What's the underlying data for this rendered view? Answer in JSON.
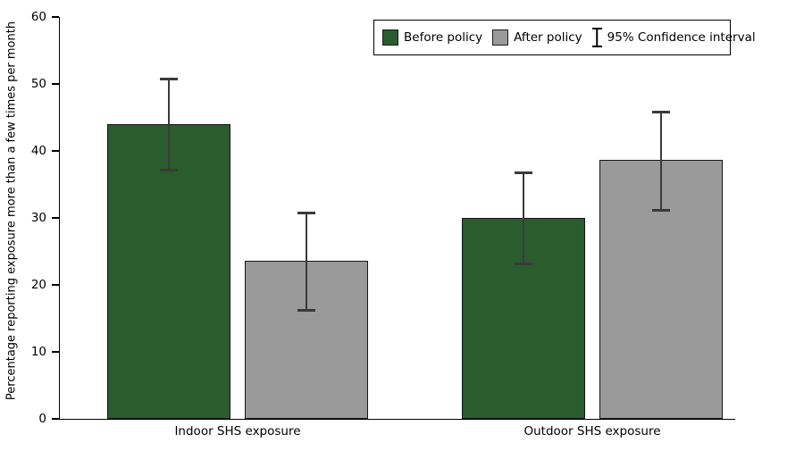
{
  "colors": {
    "before_policy": "#2a5c2d",
    "after_policy": "#9a9a9a",
    "axis": "#000000",
    "error_bar": "#3a3a3a",
    "background": "#ffffff"
  },
  "legend": {
    "ci_label": "95% Confidence interval"
  },
  "chart_data": {
    "type": "bar",
    "title": "",
    "xlabel": "",
    "ylabel": "Percentage reporting exposure more than a few times per month",
    "ylim": [
      0,
      60
    ],
    "yticks": [
      0,
      10,
      20,
      30,
      40,
      50,
      60
    ],
    "grid": false,
    "legend_position": "top-right",
    "categories": [
      "Indoor SHS exposure",
      "Outdoor SHS exposure"
    ],
    "series": [
      {
        "name": "Before policy",
        "color": "#2a5c2d",
        "values": [
          44,
          30
        ],
        "ci_low": [
          37,
          23
        ],
        "ci_high": [
          51,
          37
        ]
      },
      {
        "name": "After policy",
        "color": "#9a9a9a",
        "values": [
          23.6,
          38.7
        ],
        "ci_low": [
          16,
          31
        ],
        "ci_high": [
          31,
          46
        ]
      }
    ],
    "error_bars": "95% Confidence interval"
  }
}
